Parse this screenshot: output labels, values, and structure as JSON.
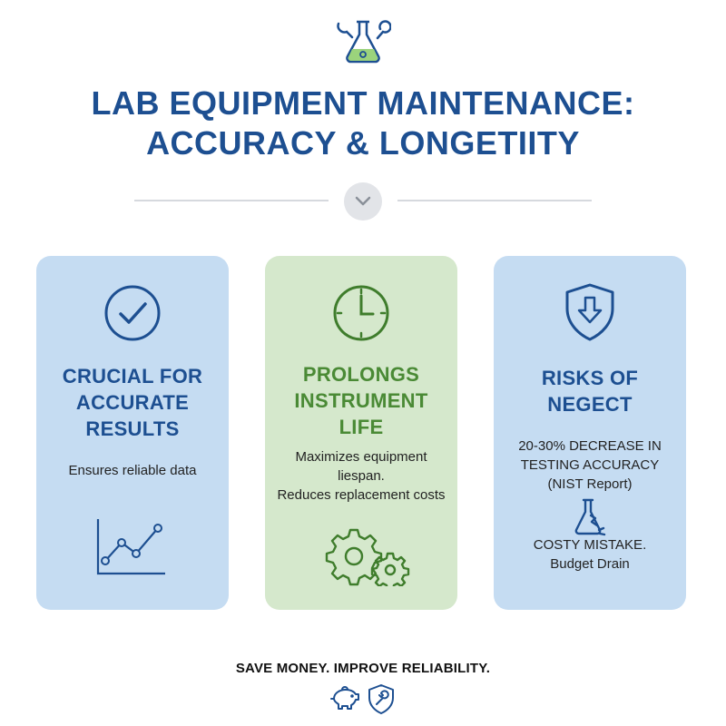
{
  "header": {
    "title_line1": "LAB EQUIPMENT MAINTENANCE:",
    "title_line2": "ACCURACY & LONGETIITY",
    "top_icon": "flask-wrench-icon",
    "divider_icon": "chevron-down-icon"
  },
  "cards": [
    {
      "theme": "blue",
      "icon": "checkmark-circle-icon",
      "title_lines": [
        "CRUCIAL FOR",
        "ACCURATE",
        "RESULTS"
      ],
      "text_lines": [
        "Ensures reliable data"
      ],
      "art_icon": "line-chart-icon"
    },
    {
      "theme": "green",
      "icon": "clock-icon",
      "title_lines": [
        "PROLONGS",
        "INSTRUMENT",
        "LIFE"
      ],
      "text_lines": [
        "Maximizes equipment",
        "liespan.",
        "Reduces replacement costs"
      ],
      "art_icon": "gears-icon"
    },
    {
      "theme": "blue",
      "icon": "shield-down-arrow-icon",
      "title_lines": [
        "RISKS OF",
        "NEGECT"
      ],
      "text_lines": [
        "20-30% DECREASE IN",
        "TESTING ACCURACY",
        "(NIST Report)"
      ],
      "mid_icon": "broken-flask-icon",
      "text2_lines": [
        "COSTY MISTAKE.",
        "Budget Drain"
      ]
    }
  ],
  "footer": {
    "tagline": "SAVE MONEY. IMPROVE RELIABILITY.",
    "icons": [
      "piggy-bank-icon",
      "shield-wrench-icon"
    ]
  },
  "colors": {
    "primary_blue": "#1d4f91",
    "accent_green": "#4a8a35",
    "card_blue": "#c5dcf2",
    "card_green": "#d5e8cc"
  }
}
